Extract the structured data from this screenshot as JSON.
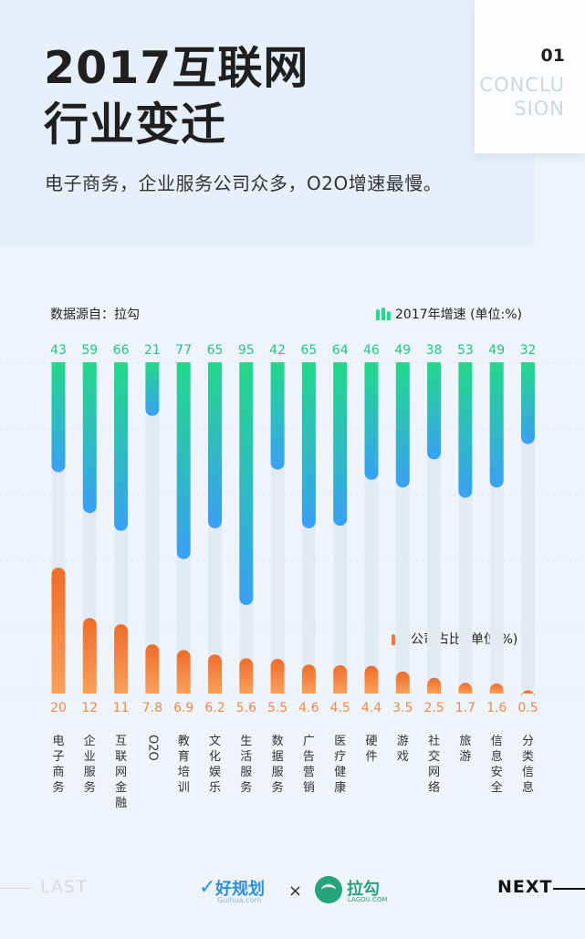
{
  "header": {
    "title_line1": "2017互联网",
    "title_line2": "行业变迁",
    "subtitle": "电子商务，企业服务公司众多，O2O增速最慢。",
    "badge_number": "01",
    "badge_word": "CONCLU\nSION"
  },
  "source": "数据源自：拉勾",
  "legend": {
    "growth": "2017年增速 (单位:%)",
    "share": "公司占比 (单位:%)"
  },
  "colors": {
    "growth_top": "#22d98a",
    "growth_bottom": "#3aa0f5",
    "share_top": "#f06c2a",
    "share_bottom": "#f9a15b",
    "track": "#e2ebf4",
    "growth_label": "#22c781",
    "share_label": "#ef8a48"
  },
  "chart_data": {
    "type": "bar",
    "categories": [
      "电子商务",
      "企业服务",
      "互联网金融",
      "O2O",
      "教育培训",
      "文化娱乐",
      "生活服务",
      "数据服务",
      "广告营销",
      "医疗健康",
      "硬件",
      "游戏",
      "社交网络",
      "旅游",
      "信息安全",
      "分类信息"
    ],
    "series": [
      {
        "name": "2017年增速 (单位:%)",
        "values": [
          43,
          59,
          66,
          21,
          77,
          65,
          95,
          42,
          65,
          64,
          46,
          49,
          38,
          53,
          49,
          32
        ],
        "labels": [
          "43",
          "59",
          "66",
          "21",
          "77",
          "65",
          "95",
          "42",
          "65",
          "64",
          "46",
          "49",
          "38",
          "53",
          "49",
          "32"
        ]
      },
      {
        "name": "公司占比 (单位:%)",
        "values": [
          20,
          12,
          11,
          7.8,
          6.9,
          6.2,
          5.6,
          5.5,
          4.6,
          4.5,
          4.4,
          3.5,
          2.5,
          1.7,
          1.6,
          0.5
        ],
        "labels": [
          "20",
          "12",
          "11",
          "7.8",
          "6.9",
          "6.2",
          "5.6",
          "5.5",
          "4.6",
          "4.5",
          "4.4",
          "3.5",
          "2.5",
          "1.7",
          "1.6",
          "0.5"
        ]
      }
    ],
    "growth_ylim": [
      0,
      100
    ],
    "share_ylim": [
      0,
      20
    ],
    "grid": true,
    "legend_placement": "top-right"
  },
  "footer": {
    "last": "LAST",
    "next": "NEXT",
    "brand1_name": "好规划",
    "brand1_sub": "Guihua.com",
    "times": "×",
    "brand2_name": "拉勾",
    "brand2_sub": "LAGOU.COM"
  }
}
